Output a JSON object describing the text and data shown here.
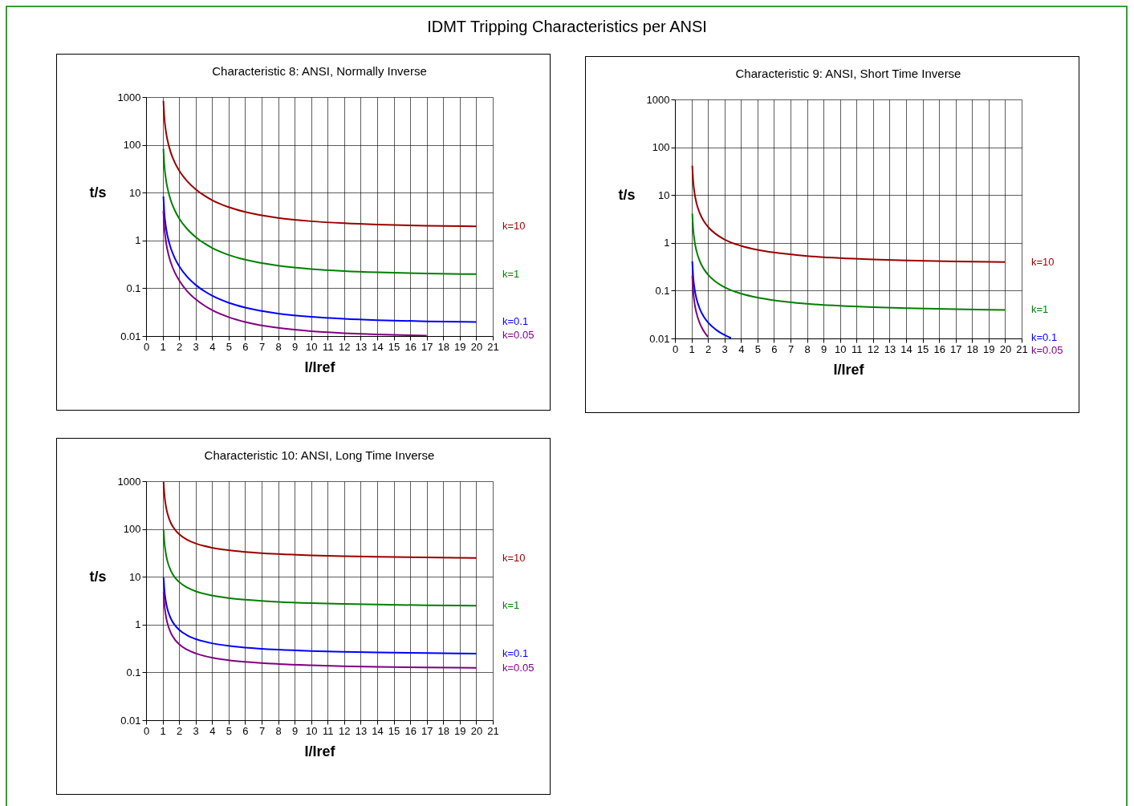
{
  "chart_data": [
    {
      "type": "other",
      "title": "IDMT Tripping Characteristics per ANSI"
    },
    {
      "type": "line",
      "title": "Characteristic 8: ANSI, Normally Inverse",
      "xlabel": "I/Iref",
      "ylabel": "t/s",
      "xlim": [
        0,
        21
      ],
      "xticks": [
        0,
        1,
        2,
        3,
        4,
        5,
        6,
        7,
        8,
        9,
        10,
        11,
        12,
        13,
        14,
        15,
        16,
        17,
        18,
        19,
        20,
        21
      ],
      "ylim": [
        0.01,
        1000
      ],
      "yticks": [
        0.01,
        0.1,
        1,
        10,
        100,
        1000
      ],
      "log": "y",
      "grid": true,
      "x": [
        1.05,
        1.1,
        1.2,
        1.3,
        1.5,
        1.75,
        2,
        2.5,
        3,
        4,
        5,
        6,
        8,
        10,
        12,
        14,
        17,
        20
      ],
      "series": [
        {
          "name": "k=10",
          "color": "#990000",
          "values": [
            832,
            406,
            194,
            124,
            68.6,
            41.9,
            29.1,
            17.2,
            11.75,
            6.98,
            4.98,
            3.95,
            2.96,
            2.52,
            2.29,
            2.15,
            2.03,
            1.97
          ]
        },
        {
          "name": "k=1",
          "color": "#008000",
          "values": [
            83.2,
            40.6,
            19.4,
            12.4,
            6.86,
            4.19,
            2.91,
            1.72,
            1.18,
            0.698,
            0.498,
            0.395,
            0.296,
            0.252,
            0.229,
            0.215,
            0.203,
            0.197
          ]
        },
        {
          "name": "k=0.1",
          "color": "#0000ff",
          "values": [
            8.32,
            4.06,
            1.94,
            1.24,
            0.686,
            0.419,
            0.291,
            0.172,
            0.118,
            0.0698,
            0.0498,
            0.0395,
            0.0296,
            0.0252,
            0.0229,
            0.0215,
            0.0203,
            0.0197
          ]
        },
        {
          "name": "k=0.05",
          "color": "#800080",
          "x": [
            1.05,
            1.1,
            1.2,
            1.3,
            1.5,
            1.75,
            2,
            2.5,
            3,
            4,
            5,
            6,
            8,
            10,
            12,
            14,
            17
          ],
          "values": [
            4.16,
            2.03,
            0.97,
            0.619,
            0.343,
            0.21,
            0.146,
            0.086,
            0.059,
            0.0349,
            0.0249,
            0.0197,
            0.0148,
            0.0126,
            0.0115,
            0.0108,
            0.0102
          ]
        }
      ]
    },
    {
      "type": "line",
      "title": "Characteristic 9: ANSI, Short Time Inverse",
      "xlabel": "I/Iref",
      "ylabel": "t/s",
      "xlim": [
        0,
        21
      ],
      "xticks": [
        0,
        1,
        2,
        3,
        4,
        5,
        6,
        7,
        8,
        9,
        10,
        11,
        12,
        13,
        14,
        15,
        16,
        17,
        18,
        19,
        20,
        21
      ],
      "ylim": [
        0.01,
        1000
      ],
      "yticks": [
        0.01,
        0.1,
        1,
        10,
        100,
        1000
      ],
      "log": "y",
      "grid": true,
      "x": [
        1.05,
        1.1,
        1.2,
        1.3,
        1.5,
        1.75,
        2,
        2.5,
        3,
        4,
        5,
        6,
        8,
        10,
        12,
        14,
        17,
        20
      ],
      "series": [
        {
          "name": "k=10",
          "color": "#990000",
          "values": [
            41.1,
            20.6,
            10.3,
            6.91,
            4.19,
            2.84,
            2.17,
            1.51,
            1.18,
            0.868,
            0.716,
            0.628,
            0.532,
            0.481,
            0.45,
            0.429,
            0.409,
            0.395
          ]
        },
        {
          "name": "k=1",
          "color": "#008000",
          "values": [
            4.11,
            2.06,
            1.03,
            0.691,
            0.419,
            0.284,
            0.217,
            0.151,
            0.118,
            0.0868,
            0.0716,
            0.0628,
            0.0532,
            0.0481,
            0.045,
            0.0429,
            0.0409,
            0.0395
          ]
        },
        {
          "name": "k=0.1",
          "color": "#0000ff",
          "x": [
            1.05,
            1.1,
            1.2,
            1.3,
            1.5,
            1.75,
            2,
            2.5,
            3,
            3.4
          ],
          "values": [
            0.411,
            0.206,
            0.103,
            0.0691,
            0.0419,
            0.0284,
            0.0217,
            0.0151,
            0.0118,
            0.0102
          ]
        },
        {
          "name": "k=0.05",
          "color": "#800080",
          "x": [
            1.05,
            1.1,
            1.2,
            1.3,
            1.5,
            1.75,
            2
          ],
          "values": [
            0.206,
            0.103,
            0.0516,
            0.0346,
            0.0209,
            0.0142,
            0.0108
          ]
        }
      ]
    },
    {
      "type": "line",
      "title": "Characteristic 10: ANSI, Long Time Inverse",
      "xlabel": "I/Iref",
      "ylabel": "t/s",
      "xlim": [
        0,
        21
      ],
      "xticks": [
        0,
        1,
        2,
        3,
        4,
        5,
        6,
        7,
        8,
        9,
        10,
        11,
        12,
        13,
        14,
        15,
        16,
        17,
        18,
        19,
        20,
        21
      ],
      "ylim": [
        0.01,
        1000
      ],
      "yticks": [
        0.01,
        0.1,
        1,
        10,
        100,
        1000
      ],
      "log": "y",
      "grid": true,
      "x": [
        1.06,
        1.1,
        1.2,
        1.3,
        1.5,
        1.75,
        2,
        2.5,
        3,
        4,
        5,
        6,
        8,
        10,
        12,
        14,
        17,
        20
      ],
      "series": [
        {
          "name": "k=10",
          "color": "#990000",
          "values": [
            958,
            583,
            303,
            209,
            134,
            96.7,
            78,
            59.3,
            49.9,
            40.6,
            35.9,
            33.1,
            29.9,
            28.1,
            27,
            26.2,
            25.4,
            24.8
          ]
        },
        {
          "name": "k=1",
          "color": "#008000",
          "values": [
            95.8,
            58.3,
            30.3,
            20.9,
            13.4,
            9.67,
            7.8,
            5.93,
            4.99,
            4.06,
            3.59,
            3.31,
            2.99,
            2.81,
            2.7,
            2.62,
            2.54,
            2.48
          ]
        },
        {
          "name": "k=0.1",
          "color": "#0000ff",
          "values": [
            9.58,
            5.83,
            3.03,
            2.09,
            1.34,
            0.967,
            0.78,
            0.593,
            0.499,
            0.406,
            0.359,
            0.331,
            0.299,
            0.281,
            0.27,
            0.262,
            0.254,
            0.248
          ]
        },
        {
          "name": "k=0.05",
          "color": "#800080",
          "values": [
            4.79,
            2.92,
            1.51,
            1.05,
            0.67,
            0.484,
            0.39,
            0.297,
            0.25,
            0.203,
            0.18,
            0.166,
            0.15,
            0.141,
            0.135,
            0.131,
            0.127,
            0.124
          ]
        }
      ]
    }
  ]
}
